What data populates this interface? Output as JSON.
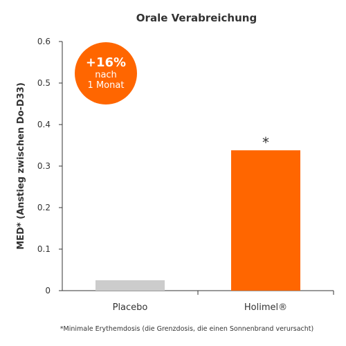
{
  "chart_data": {
    "type": "bar",
    "title": "Orale Verabreichung",
    "ylabel": "MED* (Anstieg zwischen Do-D33)",
    "xlabel": "",
    "categories": [
      "Placebo",
      "Holimel®"
    ],
    "values": [
      0.025,
      0.338
    ],
    "ylim": [
      0,
      0.6
    ],
    "yticks": [
      0,
      0.1,
      0.2,
      0.3,
      0.4,
      0.5,
      0.6
    ],
    "ytick_labels": [
      "0",
      "0.1",
      "0.2",
      "0.3",
      "0.4",
      "0.5",
      "0.6"
    ],
    "bar_colors": [
      "#cccccc",
      "#ff6600"
    ],
    "annotations": [
      "",
      "*"
    ],
    "grid": false
  },
  "badge": {
    "value": "+16%",
    "line1": "nach",
    "line2": "1 Monat",
    "color": "#ff6600"
  },
  "footnote": "*Minimale Erythemdosis (die Grenzdosis, die einen Sonnenbrand verursacht)"
}
